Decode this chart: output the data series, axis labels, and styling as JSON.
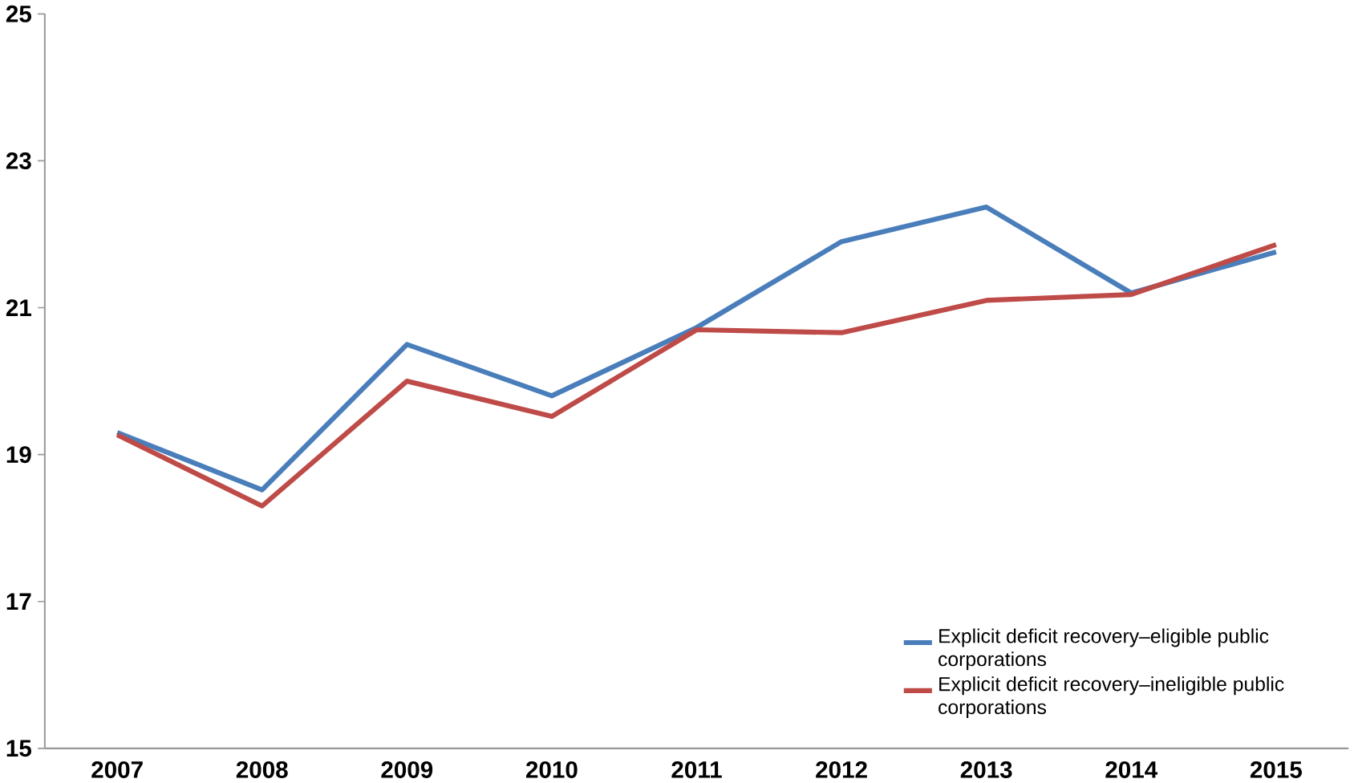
{
  "chart_data": {
    "type": "line",
    "categories": [
      "2007",
      "2008",
      "2009",
      "2010",
      "2011",
      "2012",
      "2013",
      "2014",
      "2015"
    ],
    "series": [
      {
        "name": "Explicit deficit recovery–eligible public corporations",
        "color": "#4a7ebb",
        "values": [
          19.3,
          18.52,
          20.5,
          19.8,
          20.73,
          21.9,
          22.37,
          21.2,
          21.76
        ]
      },
      {
        "name": "Explicit deficit recovery–ineligible public corporations",
        "color": "#be4b48",
        "values": [
          19.27,
          18.3,
          20.0,
          19.52,
          20.7,
          20.66,
          21.1,
          21.18,
          21.86
        ]
      }
    ],
    "ylim": [
      15,
      25
    ],
    "yticks": [
      15,
      17,
      19,
      21,
      23,
      25
    ],
    "grid": false,
    "legend": "bottom right",
    "marker": "none",
    "line_style": "solid"
  }
}
